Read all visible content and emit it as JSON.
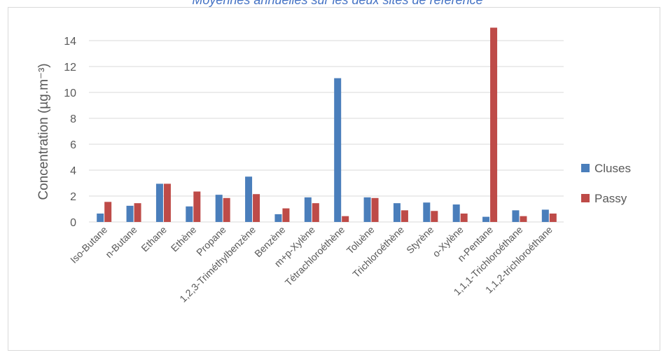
{
  "chart_data": {
    "type": "bar",
    "title": "Moyennes annuelles sur les deux sites de référence",
    "y_label": "Concentration (µg.m⁻³)",
    "categories": [
      "Iso-Butane",
      "n-Butane",
      "Ethane",
      "Ethène",
      "Propane",
      "1,2,3-Triméthylbenzène",
      "Benzène",
      "m+p-Xylène",
      "Tétrachloroéthène",
      "Toluène",
      "Trichloroéthène",
      "Styrène",
      "o-Xylène",
      "n-Pentane",
      "1,1,1-Trichloroéthane",
      "1,1,2-trichloroéthane"
    ],
    "series": [
      {
        "name": "Cluses",
        "color": "#4a7ebb",
        "values": [
          0.65,
          1.25,
          2.95,
          1.2,
          2.1,
          3.5,
          0.6,
          1.9,
          11.1,
          1.9,
          1.45,
          1.5,
          1.35,
          0.4,
          0.9,
          0.95
        ]
      },
      {
        "name": "Passy",
        "color": "#be4b48",
        "values": [
          1.55,
          1.45,
          2.95,
          2.35,
          1.85,
          2.15,
          1.05,
          1.45,
          0.45,
          1.85,
          0.9,
          0.85,
          0.65,
          15,
          0.45,
          0.65
        ]
      }
    ],
    "ylim": [
      0,
      15
    ],
    "yticks": [
      0,
      2,
      4,
      6,
      8,
      10,
      12,
      14
    ],
    "grid": true,
    "legend": "right"
  }
}
